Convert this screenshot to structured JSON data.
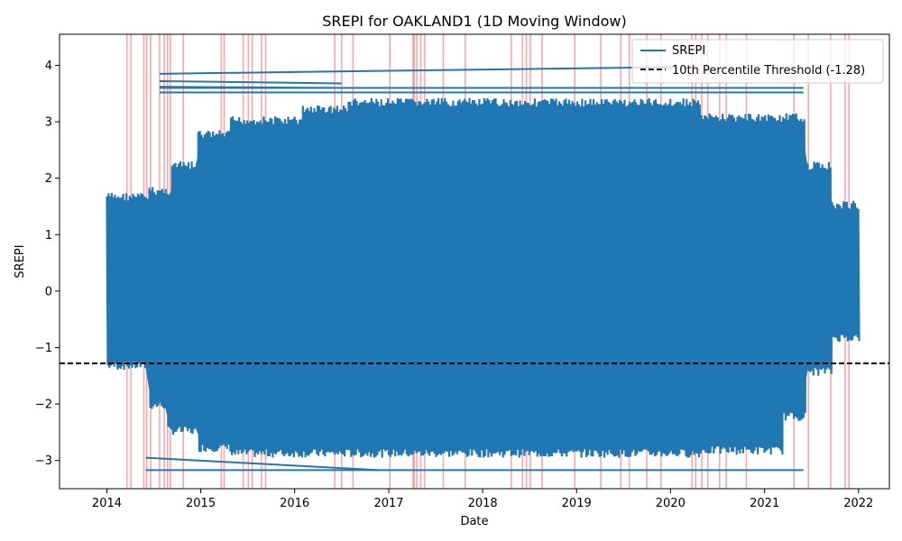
{
  "chart_data": {
    "type": "line",
    "title": "SREPI for OAKLAND1 (1D Moving Window)",
    "xlabel": "Date",
    "ylabel": "SREPI",
    "x_range": [
      "2013-07-01",
      "2022-05-01"
    ],
    "x_ticks": [
      "2014",
      "2015",
      "2016",
      "2017",
      "2018",
      "2019",
      "2020",
      "2021",
      "2022"
    ],
    "ylim": [
      -3.5,
      4.55
    ],
    "y_ticks": [
      -3,
      -2,
      -1,
      0,
      1,
      2,
      3,
      4
    ],
    "y_tick_labels": [
      "−3",
      "−2",
      "−1",
      "0",
      "1",
      "2",
      "3",
      "4"
    ],
    "grid": false,
    "legend_position": "top-right",
    "series": [
      {
        "name": "SREPI",
        "color": "#1f77b4",
        "style": "solid",
        "date_span": [
          "2014-01-01",
          "2021-12-31"
        ],
        "value_range": [
          -3.17,
          3.97
        ]
      }
    ],
    "threshold": {
      "label": "10th Percentile Threshold (-1.28)",
      "value": -1.28,
      "color": "#000000",
      "style": "dashed"
    },
    "drought_markers": {
      "color": "#ff0000",
      "dates": [
        "2014-03-20",
        "2014-04-05",
        "2014-05-25",
        "2014-06-05",
        "2014-06-20",
        "2014-07-25",
        "2014-08-12",
        "2014-08-25",
        "2014-09-05",
        "2014-10-25",
        "2015-03-22",
        "2015-04-02",
        "2015-06-15",
        "2015-07-05",
        "2015-07-20",
        "2015-08-25",
        "2015-09-10",
        "2016-06-05",
        "2016-07-02",
        "2016-08-15",
        "2017-01-05",
        "2017-04-05",
        "2017-04-10",
        "2017-04-20",
        "2017-05-05",
        "2017-05-20",
        "2017-08-01",
        "2017-10-25",
        "2018-04-22",
        "2018-06-05",
        "2018-06-20",
        "2018-07-05",
        "2018-08-20",
        "2018-12-25",
        "2019-04-05",
        "2019-06-22",
        "2019-07-25",
        "2019-10-01",
        "2019-11-25",
        "2020-03-25",
        "2020-04-08",
        "2020-05-02",
        "2020-05-25",
        "2020-07-10",
        "2020-08-05",
        "2020-10-22",
        "2021-04-25",
        "2021-06-20",
        "2021-09-15",
        "2021-11-10",
        "2021-11-25"
      ]
    }
  }
}
